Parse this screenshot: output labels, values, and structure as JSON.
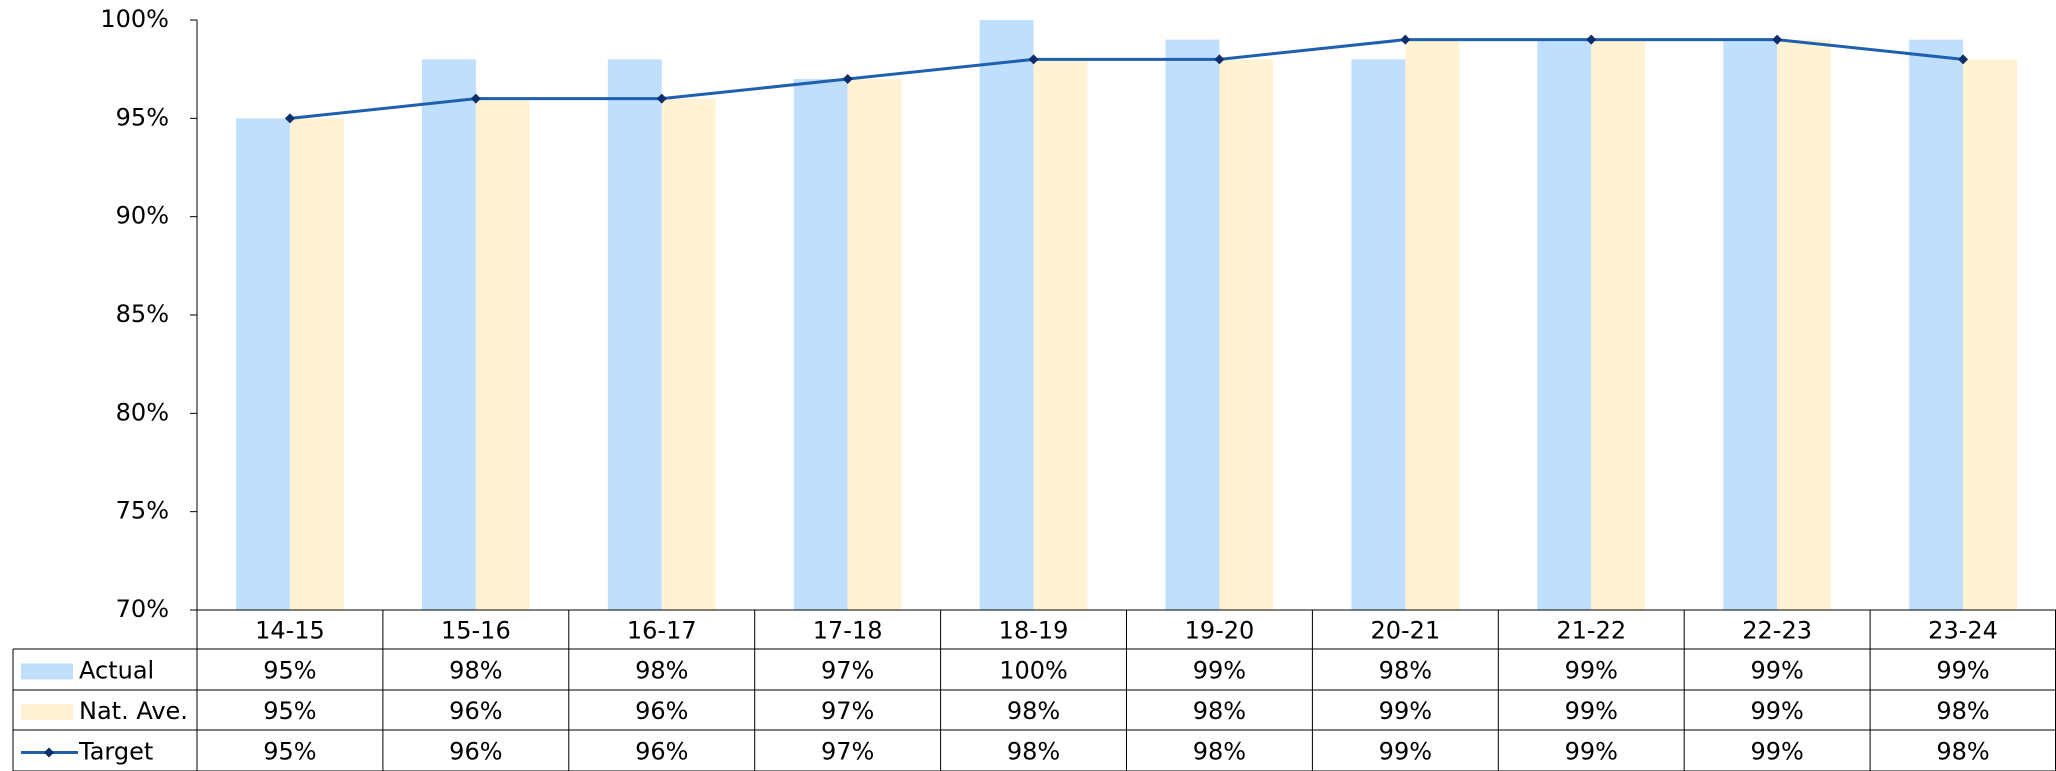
{
  "chart_data": {
    "type": "bar",
    "categories": [
      "14-15",
      "15-16",
      "16-17",
      "17-18",
      "18-19",
      "19-20",
      "20-21",
      "21-22",
      "22-23",
      "23-24"
    ],
    "series": [
      {
        "name": "Actual",
        "type": "bar",
        "color": "#bfdffd",
        "values": [
          95,
          98,
          98,
          97,
          100,
          99,
          98,
          99,
          99,
          99
        ],
        "value_labels": [
          "95%",
          "98%",
          "98%",
          "97%",
          "100%",
          "99%",
          "98%",
          "99%",
          "99%",
          "99%"
        ]
      },
      {
        "name": "Nat. Ave.",
        "type": "bar",
        "color": "#fff3d3",
        "values": [
          95,
          96,
          96,
          97,
          98,
          98,
          99,
          99,
          99,
          98
        ],
        "value_labels": [
          "95%",
          "96%",
          "96%",
          "97%",
          "98%",
          "98%",
          "99%",
          "99%",
          "99%",
          "98%"
        ]
      },
      {
        "name": "Target",
        "type": "line",
        "color": "#1f5fb0",
        "marker_color": "#0d2f6b",
        "values": [
          95,
          96,
          96,
          97,
          98,
          98,
          99,
          99,
          99,
          98
        ],
        "value_labels": [
          "95%",
          "96%",
          "96%",
          "97%",
          "98%",
          "98%",
          "99%",
          "99%",
          "99%",
          "98%"
        ]
      }
    ],
    "ylim": [
      70,
      100
    ],
    "yticks": [
      {
        "value": 70,
        "label": "70%"
      },
      {
        "value": 75,
        "label": "75%"
      },
      {
        "value": 80,
        "label": "80%"
      },
      {
        "value": 85,
        "label": "85%"
      },
      {
        "value": 90,
        "label": "90%"
      },
      {
        "value": 95,
        "label": "95%"
      },
      {
        "value": 100,
        "label": "100%"
      }
    ],
    "grid": false,
    "data_table": true
  }
}
